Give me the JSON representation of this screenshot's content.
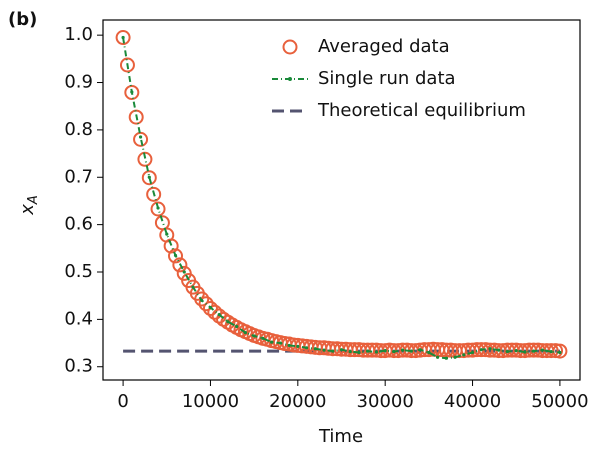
{
  "chart_data": {
    "type": "line",
    "panel_label": "(b)",
    "x_label": "Time",
    "y_label": "x",
    "y_label_sub": "A",
    "xlim": [
      -2300,
      52300
    ],
    "ylim": [
      0.272,
      1.032
    ],
    "xticks": [
      0,
      10000,
      20000,
      30000,
      40000,
      50000
    ],
    "yticks": [
      0.3,
      0.4,
      0.5,
      0.6,
      0.7,
      0.8,
      0.9,
      {
        "value": 1,
        "label": "1.0"
      }
    ],
    "legend": "upper right",
    "series": [
      {
        "name": "Averaged data",
        "style": "circles",
        "color": "#e8603c",
        "x": [
          0,
          500,
          1000,
          1500,
          2000,
          2500,
          3000,
          3500,
          4000,
          4500,
          5000,
          5500,
          6000,
          6500,
          7000,
          7500,
          8000,
          8500,
          9000,
          9500,
          10000,
          10500,
          11000,
          11500,
          12000,
          12500,
          13000,
          13500,
          14000,
          14500,
          15000,
          15500,
          16000,
          16500,
          17000,
          17500,
          18000,
          18500,
          19000,
          19500,
          20000,
          20500,
          21000,
          21500,
          22000,
          22500,
          23000,
          23500,
          24000,
          24500,
          25000,
          25500,
          26000,
          26500,
          27000,
          27500,
          28000,
          28500,
          29000,
          29500,
          30000,
          30500,
          31000,
          31500,
          32000,
          32500,
          33000,
          33500,
          34000,
          34500,
          35000,
          35500,
          36000,
          36500,
          37000,
          37500,
          38000,
          38500,
          39000,
          39500,
          40000,
          40500,
          41000,
          41500,
          42000,
          42500,
          43000,
          43500,
          44000,
          44500,
          45000,
          45500,
          46000,
          46500,
          47000,
          47500,
          48000,
          48500,
          49000,
          49500,
          50000
        ],
        "values": [
          0.995,
          0.937,
          0.879,
          0.827,
          0.78,
          0.738,
          0.699,
          0.664,
          0.633,
          0.604,
          0.578,
          0.555,
          0.534,
          0.515,
          0.497,
          0.482,
          0.468,
          0.455,
          0.443,
          0.433,
          0.423,
          0.415,
          0.407,
          0.4,
          0.394,
          0.388,
          0.383,
          0.378,
          0.374,
          0.37,
          0.366,
          0.363,
          0.36,
          0.358,
          0.355,
          0.353,
          0.351,
          0.349,
          0.348,
          0.346,
          0.345,
          0.344,
          0.343,
          0.342,
          0.341,
          0.34,
          0.34,
          0.339,
          0.338,
          0.338,
          0.337,
          0.337,
          0.336,
          0.336,
          0.336,
          0.335,
          0.335,
          0.335,
          0.335,
          0.334,
          0.334,
          0.335,
          0.334,
          0.334,
          0.335,
          0.335,
          0.334,
          0.334,
          0.335,
          0.336,
          0.336,
          0.337,
          0.336,
          0.336,
          0.335,
          0.335,
          0.334,
          0.334,
          0.334,
          0.335,
          0.335,
          0.336,
          0.336,
          0.336,
          0.335,
          0.335,
          0.334,
          0.334,
          0.335,
          0.335,
          0.335,
          0.334,
          0.334,
          0.335,
          0.335,
          0.335,
          0.334,
          0.334,
          0.334,
          0.334,
          0.333
        ]
      },
      {
        "name": "Single run data",
        "style": "dashdot",
        "color": "#1a8a3a",
        "x": [
          0,
          1000,
          2000,
          3000,
          4000,
          5000,
          6000,
          7000,
          8000,
          9000,
          10000,
          11000,
          12000,
          13000,
          14000,
          15000,
          16000,
          17000,
          18000,
          19000,
          20000,
          21000,
          22000,
          23000,
          24000,
          25000,
          26000,
          27000,
          28000,
          29000,
          30000,
          31000,
          32000,
          33000,
          34000,
          35000,
          36000,
          37000,
          38000,
          39000,
          40000,
          41000,
          42000,
          43000,
          44000,
          45000,
          46000,
          47000,
          48000,
          49000,
          50000
        ],
        "values": [
          0.995,
          0.88,
          0.785,
          0.7,
          0.635,
          0.58,
          0.535,
          0.5,
          0.468,
          0.44,
          0.425,
          0.41,
          0.395,
          0.385,
          0.372,
          0.365,
          0.36,
          0.352,
          0.35,
          0.345,
          0.343,
          0.34,
          0.338,
          0.335,
          0.333,
          0.336,
          0.332,
          0.33,
          0.333,
          0.331,
          0.334,
          0.332,
          0.335,
          0.333,
          0.336,
          0.33,
          0.32,
          0.318,
          0.32,
          0.325,
          0.33,
          0.336,
          0.338,
          0.335,
          0.332,
          0.334,
          0.331,
          0.333,
          0.335,
          0.332,
          0.33
        ]
      },
      {
        "name": "Theoretical equilibrium",
        "style": "dashed",
        "color": "#545470",
        "x": [
          0,
          50000
        ],
        "values": [
          0.333,
          0.333
        ]
      }
    ]
  }
}
